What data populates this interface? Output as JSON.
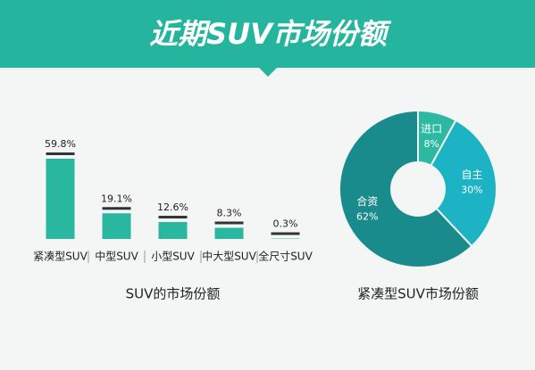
{
  "header": {
    "title": "近期SUV市场份额"
  },
  "chart_data": [
    {
      "type": "bar",
      "title": "SUV的市场份额",
      "categories": [
        "紧凑型SUV",
        "中型SUV",
        "小型SUV",
        "中大型SUV",
        "全尺寸SUV"
      ],
      "values": [
        59.8,
        19.1,
        12.6,
        8.3,
        0.3
      ],
      "value_labels": [
        "59.8%",
        "19.1%",
        "12.6%",
        "8.3%",
        "0.3%"
      ],
      "color": "#2ab7a0"
    },
    {
      "type": "pie",
      "title": "紧凑型SUV市场份额",
      "categories": [
        "进口",
        "自主",
        "合资"
      ],
      "values": [
        8,
        30,
        62
      ],
      "value_labels": [
        "8%",
        "30%",
        "62%"
      ],
      "colors": [
        "#2bb9a2",
        "#1cb3c4",
        "#1a8b8c"
      ]
    }
  ]
}
